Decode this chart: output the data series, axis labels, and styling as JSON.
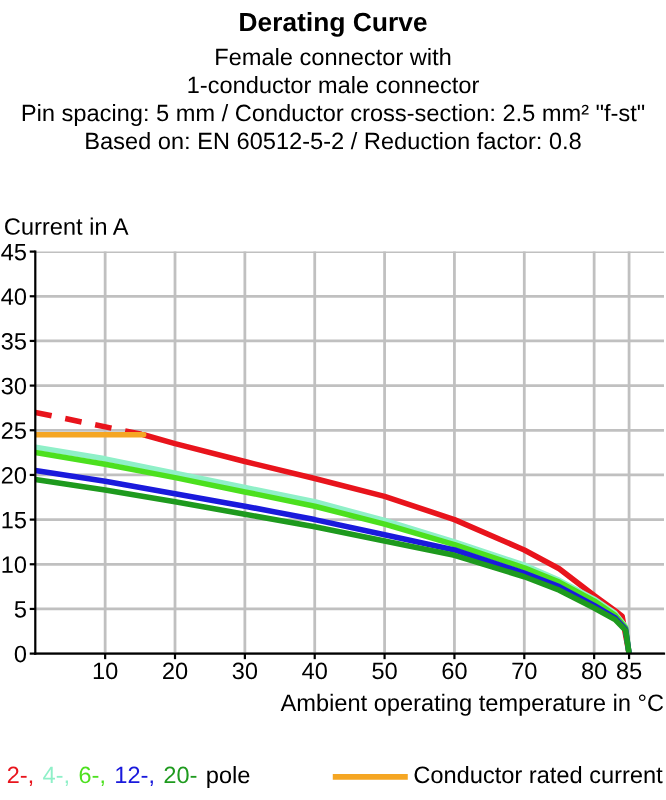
{
  "chart_data": {
    "type": "line",
    "title": "Derating Curve",
    "subtitle": "Female connector with\n1-conductor male connector\nPin spacing: 5 mm / Conductor cross-section: 2.5 mm² \"f-st\"\nBased on: EN 60512-5-2 / Reduction factor: 0.8",
    "xlabel": "Ambient operating temperature in °C",
    "ylabel": "Current in A",
    "annotations": [
      "pole"
    ],
    "xlim": [
      0,
      90
    ],
    "xticks": [
      10,
      20,
      30,
      40,
      50,
      60,
      70,
      80,
      85
    ],
    "ylim": [
      0,
      45
    ],
    "yticks": [
      0,
      5,
      10,
      15,
      20,
      25,
      30,
      35,
      40,
      45
    ],
    "grid": true,
    "legend": "bottom",
    "marker": "none",
    "series": [
      {
        "name": "2-,",
        "color": "#e8141c",
        "line_style": "solid",
        "x": [
          15.5,
          20,
          30,
          40,
          50,
          60,
          70,
          75,
          80,
          83,
          84,
          85
        ],
        "values": [
          24.5,
          23.5,
          21.5,
          19.6,
          17.6,
          15.0,
          11.6,
          9.5,
          6.5,
          4.8,
          4.2,
          0
        ]
      },
      {
        "color": "#e8141c",
        "line_style": "dashed",
        "x": [
          0,
          15.5
        ],
        "values": [
          27.0,
          24.5
        ]
      },
      {
        "name": "Conductor rated current",
        "color": "#f5a623",
        "line_style": "solid",
        "x": [
          0,
          15.5
        ],
        "values": [
          24.5,
          24.5
        ]
      },
      {
        "name": "4-,",
        "color": "#8ff0c8",
        "line_style": "solid",
        "x": [
          0,
          10,
          20,
          30,
          40,
          50,
          60,
          70,
          75,
          80,
          83,
          84.5,
          85
        ],
        "values": [
          23.1,
          21.8,
          20.2,
          18.6,
          17.0,
          14.9,
          12.5,
          9.9,
          8.2,
          6.1,
          4.5,
          3,
          0
        ]
      },
      {
        "name": "6-,",
        "color": "#4ce01e",
        "line_style": "solid",
        "x": [
          0,
          10,
          20,
          30,
          40,
          50,
          60,
          70,
          75,
          80,
          83,
          84.5,
          85
        ],
        "values": [
          22.5,
          21.2,
          19.7,
          18.1,
          16.5,
          14.5,
          12.2,
          9.6,
          8.0,
          5.9,
          4.3,
          2.9,
          0
        ]
      },
      {
        "name": "12-,",
        "color": "#1a1adc",
        "line_style": "solid",
        "x": [
          0,
          10,
          20,
          30,
          40,
          50,
          60,
          70,
          75,
          80,
          83,
          84.5,
          85
        ],
        "values": [
          20.5,
          19.3,
          17.9,
          16.5,
          15.0,
          13.3,
          11.6,
          9.0,
          7.5,
          5.4,
          4.0,
          2.7,
          0
        ]
      },
      {
        "name": "20-",
        "color": "#1e9a1e",
        "line_style": "solid",
        "x": [
          0,
          10,
          20,
          30,
          40,
          50,
          60,
          70,
          75,
          80,
          83,
          84.5,
          85
        ],
        "values": [
          19.5,
          18.3,
          17.0,
          15.6,
          14.2,
          12.6,
          11.0,
          8.6,
          7.1,
          5.1,
          3.8,
          2.6,
          0
        ]
      }
    ]
  }
}
